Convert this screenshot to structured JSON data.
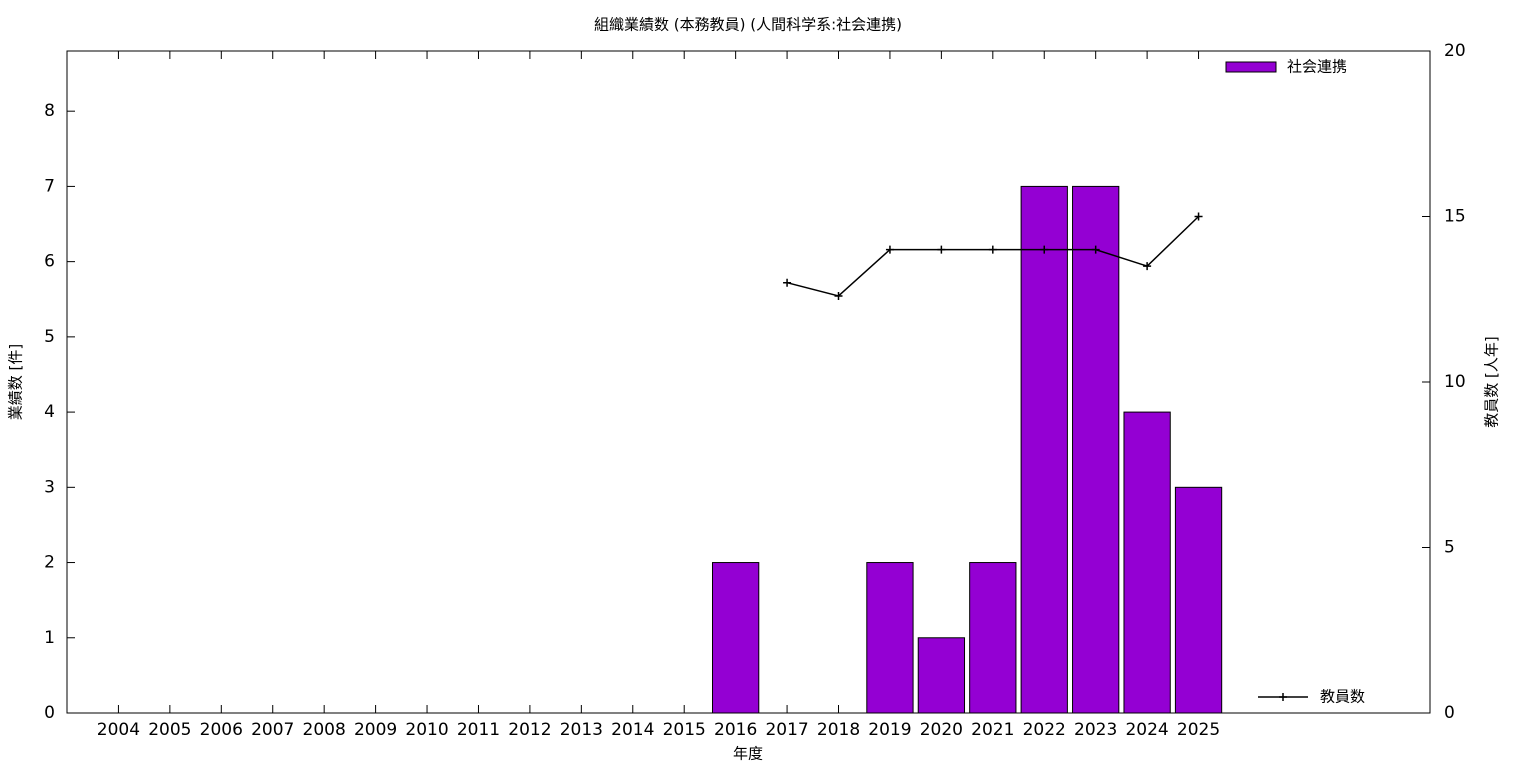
{
  "chart_data": {
    "type": "bar",
    "title": "組織業績数 (本務教員) (人間科学系:社会連携)",
    "x_label": "年度",
    "y_label": "業績数 [件]",
    "y2_label": "教員数 [人年]",
    "categories": [
      "2004",
      "2005",
      "2006",
      "2007",
      "2008",
      "2009",
      "2010",
      "2011",
      "2012",
      "2013",
      "2014",
      "2015",
      "2016",
      "2017",
      "2018",
      "2019",
      "2020",
      "2021",
      "2022",
      "2023",
      "2024",
      "2025"
    ],
    "series": [
      {
        "name": "社会連携",
        "type": "bar",
        "color": "#9400d3",
        "values": [
          0,
          0,
          0,
          0,
          0,
          0,
          0,
          0,
          0,
          0,
          0,
          0,
          2,
          0,
          0,
          2,
          1,
          2,
          7,
          7,
          4,
          3
        ]
      },
      {
        "name": "教員数",
        "type": "line",
        "color": "#000000",
        "axis": "y2",
        "values": [
          null,
          null,
          null,
          null,
          null,
          null,
          null,
          null,
          null,
          null,
          null,
          null,
          null,
          13,
          12.6,
          14,
          14,
          14,
          14,
          14,
          13.5,
          15
        ]
      }
    ],
    "ylim": [
      0,
      8.8
    ],
    "yticks": [
      0,
      1,
      2,
      3,
      4,
      5,
      6,
      7,
      8
    ],
    "y2lim": [
      0,
      20
    ],
    "y2ticks": [
      0,
      5,
      10,
      15,
      20
    ],
    "grid": false
  }
}
